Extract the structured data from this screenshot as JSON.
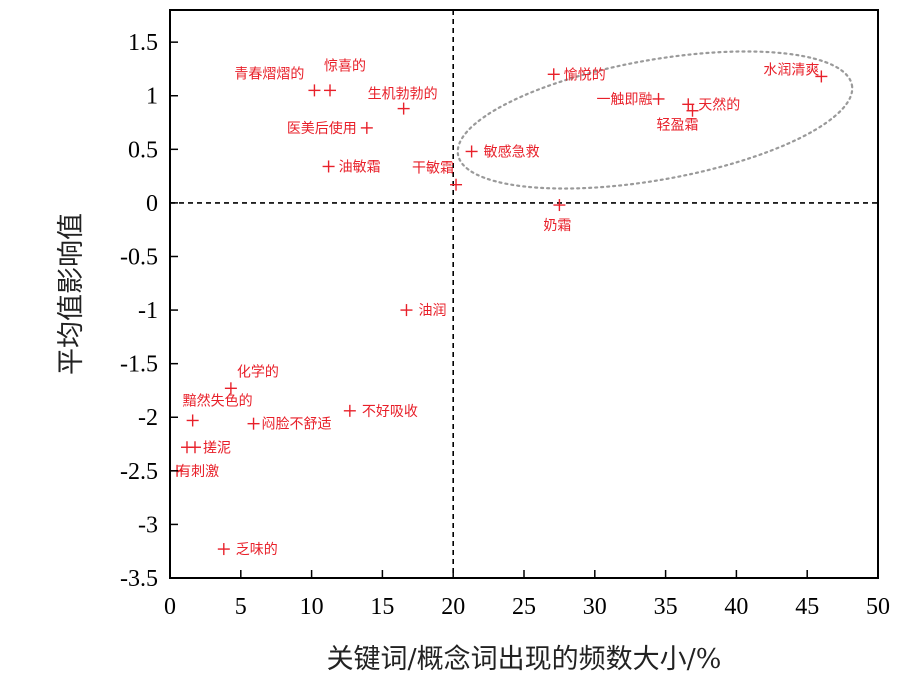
{
  "chart_data": {
    "type": "scatter",
    "title": "",
    "xlabel": "关键词/概念词出现的频数大小/%",
    "ylabel": "平均值影响值",
    "xlim": [
      0,
      50
    ],
    "ylim": [
      -3.5,
      1.8
    ],
    "x_ticks": [
      "0",
      "5",
      "10",
      "15",
      "20",
      "25",
      "30",
      "35",
      "40",
      "45",
      "50"
    ],
    "y_ticks": [
      "1.5",
      "1",
      "0.5",
      "0",
      "-0.5",
      "-1",
      "-1.5",
      "-2",
      "-2.5",
      "-3",
      "-3.5"
    ],
    "reference_lines": {
      "x": 20,
      "y": 0,
      "style": "dashed"
    },
    "marker": "+",
    "marker_color": "#e8202a",
    "highlight_region": "dotted ellipse around upper-right cluster",
    "points": [
      {
        "label": "青春熠熠的",
        "x": 10.2,
        "y": 1.05
      },
      {
        "label": "惊喜的",
        "x": 11.3,
        "y": 1.05
      },
      {
        "label": "生机勃勃的",
        "x": 16.5,
        "y": 0.88
      },
      {
        "label": "医美后使用",
        "x": 13.9,
        "y": 0.7
      },
      {
        "label": "油敏霜",
        "x": 11.2,
        "y": 0.34
      },
      {
        "label": "干敏霜",
        "x": 20.2,
        "y": 0.17
      },
      {
        "label": "敏感急救",
        "x": 21.3,
        "y": 0.48
      },
      {
        "label": "愉悦的",
        "x": 27.1,
        "y": 1.2
      },
      {
        "label": "一触即融",
        "x": 34.5,
        "y": 0.97
      },
      {
        "label": "天然的",
        "x": 36.6,
        "y": 0.92
      },
      {
        "label": "轻盈霜",
        "x": 36.9,
        "y": 0.86
      },
      {
        "label": "水润清爽",
        "x": 46.0,
        "y": 1.18
      },
      {
        "label": "奶霜",
        "x": 27.5,
        "y": -0.02
      },
      {
        "label": "油润",
        "x": 16.7,
        "y": -1.0
      },
      {
        "label": "化学的",
        "x": 4.3,
        "y": -1.73
      },
      {
        "label": "黯然失色的",
        "x": 1.6,
        "y": -2.03
      },
      {
        "label": "闷脸不舒适",
        "x": 5.9,
        "y": -2.06
      },
      {
        "label": "不好吸收",
        "x": 12.7,
        "y": -1.94
      },
      {
        "label": "搓泥",
        "x": 1.2,
        "y": -2.28
      },
      {
        "label": "有刺激",
        "x": 0.5,
        "y": -2.5
      },
      {
        "label": "乏味的",
        "x": 3.8,
        "y": -3.23
      }
    ]
  }
}
